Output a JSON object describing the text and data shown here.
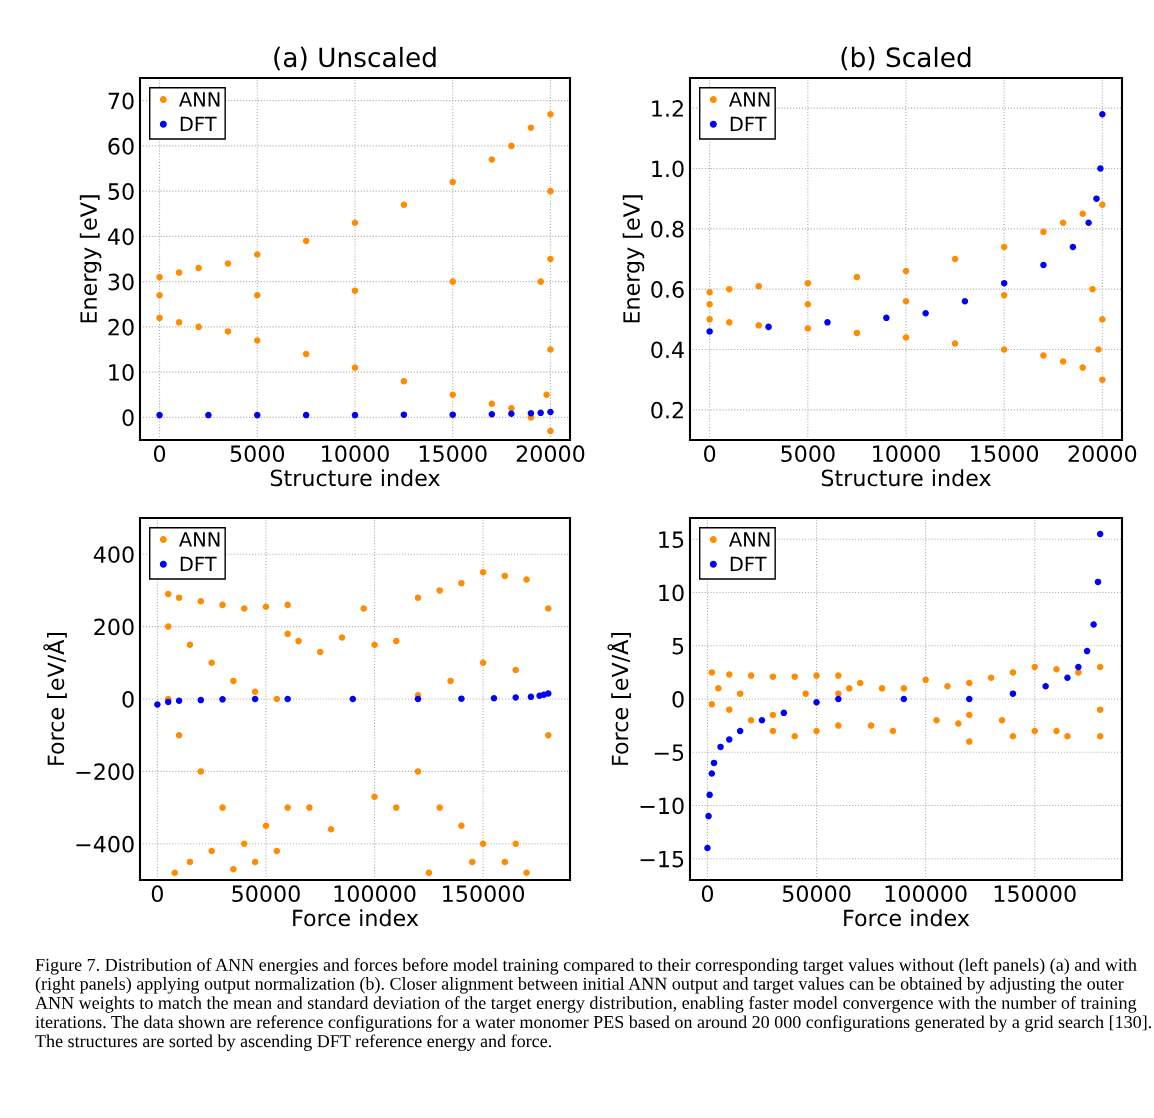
{
  "chart_data": [
    {
      "type": "scatter",
      "title": "(a) Unscaled",
      "xlabel": "Structure index",
      "ylabel": "Energy [eV]",
      "xlim": [
        -1000,
        21000
      ],
      "ylim": [
        -5,
        75
      ],
      "xticks": [
        0,
        5000,
        10000,
        15000,
        20000
      ],
      "yticks": [
        0,
        10,
        20,
        30,
        40,
        50,
        60,
        70
      ],
      "grid": true,
      "legend": "top left",
      "marker": "circle",
      "annotations": [
        "Figure 7. Distribution of ANN energies and forces before model training compared to their corresponding target values without (left panels) (a) and with (right panels) applying output normalization (b). Closer alignment between initial ANN output and target values can be obtained by adjusting the outer ANN weights to match the mean and standard deviation of the target energy distribution, enabling faster model convergence with the number of training iterations. The data shown are reference configurations for a water monomer PES based on around 20 000 configurations generated by a grid search [130]. The structures are sorted by ascending DFT reference energy and force."
      ],
      "series": [
        {
          "name": "ANN",
          "color": "#ff8c00",
          "x": [
            0,
            1000,
            2000,
            3500,
            5000,
            7500,
            10000,
            12500,
            15000,
            17000,
            18000,
            19000,
            20000,
            0,
            1000,
            2000,
            3500,
            5000,
            7500,
            10000,
            12500,
            15000,
            17000,
            18000,
            19000,
            20000,
            0,
            5000,
            10000,
            15000,
            19500,
            20000,
            20000,
            20000,
            19800
          ],
          "values": [
            31,
            32,
            33,
            34,
            36,
            39,
            43,
            47,
            52,
            57,
            60,
            64,
            67,
            22,
            21,
            20,
            19,
            17,
            14,
            11,
            8,
            5,
            3,
            2,
            0,
            -3,
            27,
            27,
            28,
            30,
            30,
            50,
            35,
            15,
            5
          ]
        },
        {
          "name": "DFT",
          "color": "#0000ff",
          "x": [
            0,
            2500,
            5000,
            7500,
            10000,
            12500,
            15000,
            17000,
            18000,
            19000,
            19500,
            20000
          ],
          "values": [
            0.5,
            0.5,
            0.5,
            0.5,
            0.5,
            0.6,
            0.6,
            0.7,
            0.8,
            0.9,
            1.0,
            1.2
          ]
        }
      ]
    },
    {
      "type": "scatter",
      "title": "(b) Scaled",
      "xlabel": "Structure index",
      "ylabel": "Energy [eV]",
      "xlim": [
        -1000,
        21000
      ],
      "ylim": [
        0.1,
        1.3
      ],
      "xticks": [
        0,
        5000,
        10000,
        15000,
        20000
      ],
      "yticks": [
        {
          "value": 0.2,
          "label": "0.2"
        },
        {
          "value": 0.4,
          "label": "0.4"
        },
        {
          "value": 0.6,
          "label": "0.6"
        },
        {
          "value": 0.8,
          "label": "0.8"
        },
        {
          "value": 1.0,
          "label": "1.0"
        },
        {
          "value": 1.2,
          "label": "1.2"
        }
      ],
      "grid": true,
      "legend": "top left",
      "marker": "circle",
      "series": [
        {
          "name": "ANN",
          "color": "#ff8c00",
          "x": [
            0,
            1000,
            2500,
            5000,
            7500,
            10000,
            12500,
            15000,
            17000,
            18000,
            19000,
            20000,
            0,
            1000,
            2500,
            5000,
            7500,
            10000,
            12500,
            15000,
            17000,
            18000,
            19000,
            20000,
            0,
            5000,
            10000,
            15000,
            19500,
            20000,
            19800
          ],
          "values": [
            0.59,
            0.6,
            0.61,
            0.62,
            0.64,
            0.66,
            0.7,
            0.74,
            0.79,
            0.82,
            0.85,
            0.88,
            0.5,
            0.49,
            0.48,
            0.47,
            0.455,
            0.44,
            0.42,
            0.4,
            0.38,
            0.36,
            0.34,
            0.3,
            0.55,
            0.55,
            0.56,
            0.58,
            0.6,
            0.5,
            0.4
          ]
        },
        {
          "name": "DFT",
          "color": "#0000ff",
          "x": [
            0,
            3000,
            6000,
            9000,
            11000,
            13000,
            15000,
            17000,
            18500,
            19300,
            19700,
            19900,
            20000
          ],
          "values": [
            0.46,
            0.475,
            0.49,
            0.505,
            0.52,
            0.56,
            0.62,
            0.68,
            0.74,
            0.82,
            0.9,
            1.0,
            1.18
          ]
        }
      ]
    },
    {
      "type": "scatter",
      "xlabel": "Force index",
      "ylabel": "Force [eV/Å]",
      "xlim": [
        -8000,
        190000
      ],
      "ylim": [
        -500,
        500
      ],
      "xticks": [
        0,
        50000,
        100000,
        150000
      ],
      "yticks": [
        {
          "value": -400,
          "label": "−400"
        },
        {
          "value": -200,
          "label": "−200"
        },
        0,
        200,
        400
      ],
      "grid": true,
      "legend": "top left",
      "marker": "circle",
      "series": [
        {
          "name": "ANN",
          "color": "#ff8c00",
          "x": [
            5000,
            10000,
            20000,
            30000,
            40000,
            50000,
            60000,
            5000,
            15000,
            25000,
            35000,
            45000,
            55000,
            60000,
            5000,
            10000,
            20000,
            30000,
            40000,
            50000,
            60000,
            8000,
            15000,
            25000,
            35000,
            45000,
            55000,
            65000,
            75000,
            85000,
            95000,
            100000,
            110000,
            70000,
            80000,
            100000,
            110000,
            120000,
            130000,
            140000,
            150000,
            160000,
            170000,
            180000,
            120000,
            135000,
            150000,
            165000,
            120000,
            130000,
            140000,
            150000,
            160000,
            170000,
            180000,
            125000,
            145000,
            165000
          ],
          "values": [
            290,
            280,
            270,
            260,
            250,
            255,
            260,
            200,
            150,
            100,
            50,
            20,
            0,
            180,
            0,
            -100,
            -200,
            -300,
            -400,
            -350,
            -300,
            -480,
            -450,
            -420,
            -470,
            -450,
            -420,
            160,
            130,
            170,
            250,
            150,
            160,
            -300,
            -360,
            -270,
            -300,
            280,
            300,
            320,
            350,
            340,
            330,
            250,
            10,
            50,
            100,
            80,
            -200,
            -300,
            -350,
            -400,
            -450,
            -480,
            -100,
            -480,
            -450,
            -400
          ]
        },
        {
          "name": "DFT",
          "color": "#0000ff",
          "x": [
            0,
            5000,
            10000,
            20000,
            30000,
            45000,
            60000,
            90000,
            120000,
            140000,
            155000,
            165000,
            172000,
            176000,
            178000,
            180000
          ],
          "values": [
            -15,
            -8,
            -5,
            -3,
            -1,
            0,
            0,
            0,
            0,
            1,
            2,
            4,
            6,
            9,
            12,
            15
          ]
        }
      ]
    },
    {
      "type": "scatter",
      "xlabel": "Force index",
      "ylabel": "Force [eV/Å]",
      "xlim": [
        -8000,
        190000
      ],
      "ylim": [
        -17,
        17
      ],
      "xticks": [
        0,
        50000,
        100000,
        150000
      ],
      "yticks": [
        {
          "value": -15,
          "label": "−15"
        },
        {
          "value": -10,
          "label": "−10"
        },
        {
          "value": -5,
          "label": "−5"
        },
        0,
        5,
        10,
        15
      ],
      "grid": true,
      "legend": "top left",
      "marker": "circle",
      "series": [
        {
          "name": "ANN",
          "color": "#ff8c00",
          "x": [
            2000,
            10000,
            20000,
            30000,
            40000,
            50000,
            60000,
            2000,
            10000,
            20000,
            30000,
            40000,
            50000,
            60000,
            5000,
            15000,
            30000,
            45000,
            60000,
            65000,
            70000,
            80000,
            90000,
            100000,
            110000,
            75000,
            85000,
            105000,
            115000,
            120000,
            130000,
            140000,
            150000,
            160000,
            170000,
            180000,
            120000,
            135000,
            150000,
            165000,
            180000,
            120000,
            140000,
            160000,
            180000
          ],
          "values": [
            2.5,
            2.3,
            2.2,
            2.1,
            2.1,
            2.2,
            2.2,
            -0.5,
            -1.0,
            -2.0,
            -3.0,
            -3.5,
            -3.0,
            -2.5,
            1.0,
            0.5,
            -1.5,
            0.5,
            0.5,
            1.0,
            1.5,
            1.0,
            1.0,
            1.8,
            1.2,
            -2.5,
            -3.0,
            -2.0,
            -2.3,
            1.5,
            2.0,
            2.5,
            3.0,
            2.8,
            2.5,
            3.0,
            -1.5,
            -2.0,
            -3.0,
            -3.5,
            -1.0,
            -4.0,
            -3.5,
            -3.0,
            -3.5
          ]
        },
        {
          "name": "DFT",
          "color": "#0000ff",
          "x": [
            0,
            500,
            1000,
            2000,
            3000,
            6000,
            10000,
            15000,
            25000,
            35000,
            50000,
            60000,
            90000,
            120000,
            140000,
            155000,
            165000,
            170000,
            174000,
            177000,
            179000,
            180000
          ],
          "values": [
            -14,
            -11,
            -9,
            -7,
            -6,
            -4.5,
            -3.8,
            -3,
            -2,
            -1.3,
            -0.3,
            0,
            0,
            0,
            0.5,
            1.2,
            2,
            3,
            4.5,
            7,
            11,
            15.5
          ]
        }
      ]
    }
  ]
}
